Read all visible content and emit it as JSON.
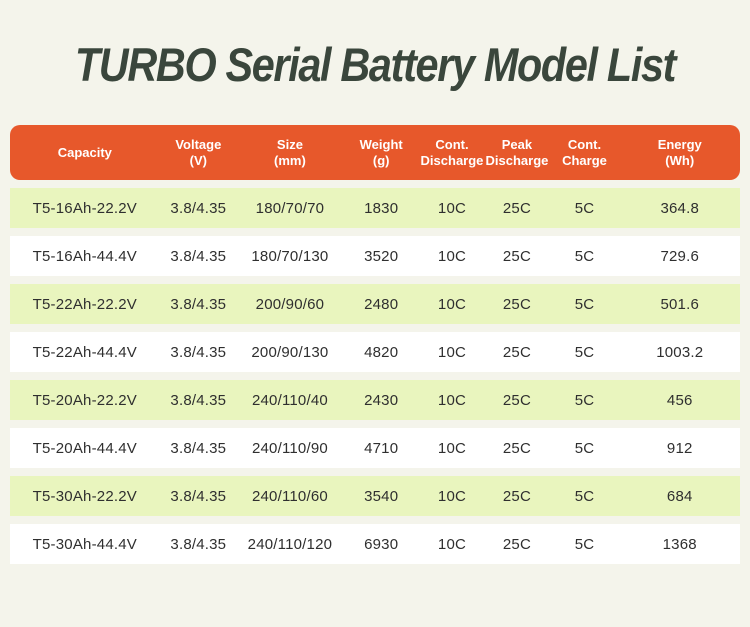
{
  "title": "TURBO Serial Battery Model List",
  "colors": {
    "background": "#F4F4EB",
    "header_bg": "#E7582B",
    "header_text": "#FFFFFF",
    "row_alt_bg": "#E9F5BE",
    "row_bg": "#FFFFFF",
    "title_text": "#3A463C",
    "cell_text": "#2F2F2F"
  },
  "table": {
    "columns": [
      "Capacity",
      "Voltage\n(V)",
      "Size\n(mm)",
      "Weight\n(g)",
      "Cont.\nDischarge",
      "Peak\nDischarge",
      "Cont.\nCharge",
      "Energy\n(Wh)"
    ],
    "rows": [
      [
        "T5-16Ah-22.2V",
        "3.8/4.35",
        "180/70/70",
        "1830",
        "10C",
        "25C",
        "5C",
        "364.8"
      ],
      [
        "T5-16Ah-44.4V",
        "3.8/4.35",
        "180/70/130",
        "3520",
        "10C",
        "25C",
        "5C",
        "729.6"
      ],
      [
        "T5-22Ah-22.2V",
        "3.8/4.35",
        "200/90/60",
        "2480",
        "10C",
        "25C",
        "5C",
        "501.6"
      ],
      [
        "T5-22Ah-44.4V",
        "3.8/4.35",
        "200/90/130",
        "4820",
        "10C",
        "25C",
        "5C",
        "1003.2"
      ],
      [
        "T5-20Ah-22.2V",
        "3.8/4.35",
        "240/110/40",
        "2430",
        "10C",
        "25C",
        "5C",
        "456"
      ],
      [
        "T5-20Ah-44.4V",
        "3.8/4.35",
        "240/110/90",
        "4710",
        "10C",
        "25C",
        "5C",
        "912"
      ],
      [
        "T5-30Ah-22.2V",
        "3.8/4.35",
        "240/110/60",
        "3540",
        "10C",
        "25C",
        "5C",
        "684"
      ],
      [
        "T5-30Ah-44.4V",
        "3.8/4.35",
        "240/110/120",
        "6930",
        "10C",
        "25C",
        "5C",
        "1368"
      ]
    ]
  }
}
